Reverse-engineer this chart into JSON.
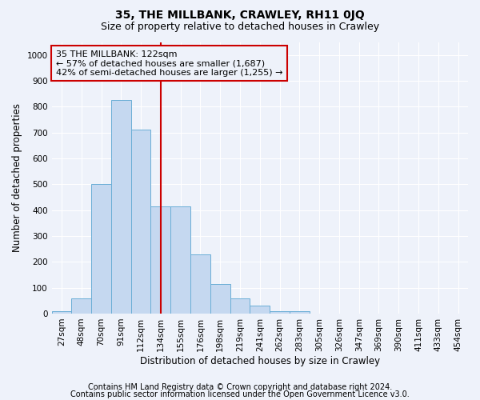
{
  "title": "35, THE MILLBANK, CRAWLEY, RH11 0JQ",
  "subtitle": "Size of property relative to detached houses in Crawley",
  "xlabel": "Distribution of detached houses by size in Crawley",
  "ylabel": "Number of detached properties",
  "bar_categories": [
    "27sqm",
    "48sqm",
    "70sqm",
    "91sqm",
    "112sqm",
    "134sqm",
    "155sqm",
    "176sqm",
    "198sqm",
    "219sqm",
    "241sqm",
    "262sqm",
    "283sqm",
    "305sqm",
    "326sqm",
    "347sqm",
    "369sqm",
    "390sqm",
    "411sqm",
    "433sqm",
    "454sqm"
  ],
  "bar_values": [
    10,
    60,
    500,
    825,
    710,
    415,
    415,
    230,
    115,
    60,
    32,
    10,
    10,
    0,
    0,
    0,
    0,
    0,
    0,
    0,
    0
  ],
  "bar_color": "#c5d8f0",
  "bar_edge_color": "#6aaed6",
  "ylim": [
    0,
    1050
  ],
  "yticks": [
    0,
    100,
    200,
    300,
    400,
    500,
    600,
    700,
    800,
    900,
    1000
  ],
  "vline_x": 5.0,
  "vline_color": "#cc0000",
  "annotation_text": "35 THE MILLBANK: 122sqm\n← 57% of detached houses are smaller (1,687)\n42% of semi-detached houses are larger (1,255) →",
  "annotation_box_color": "#cc0000",
  "footer_line1": "Contains HM Land Registry data © Crown copyright and database right 2024.",
  "footer_line2": "Contains public sector information licensed under the Open Government Licence v3.0.",
  "bg_color": "#eef2fa",
  "grid_color": "#ffffff",
  "title_fontsize": 10,
  "subtitle_fontsize": 9,
  "axis_label_fontsize": 8.5,
  "tick_fontsize": 7.5,
  "annotation_fontsize": 8,
  "footer_fontsize": 7
}
